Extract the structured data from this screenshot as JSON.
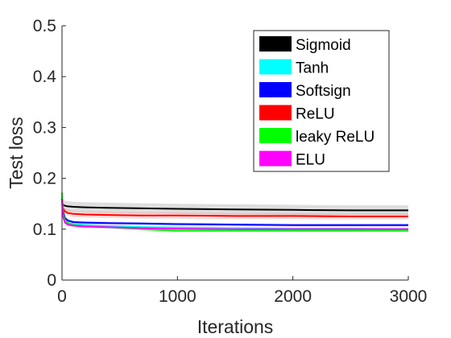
{
  "chart_data": {
    "type": "line",
    "title": "",
    "xlabel": "Iterations",
    "ylabel": "Test loss",
    "xlim": [
      0,
      3000
    ],
    "ylim": [
      0,
      0.5
    ],
    "xticks": [
      "0",
      "1000",
      "2000",
      "3000"
    ],
    "yticks": [
      "0",
      "0.1",
      "0.2",
      "0.3",
      "0.4",
      "0.5"
    ],
    "grid": false,
    "legend_position": "top-right",
    "x": [
      0,
      10,
      25,
      50,
      100,
      200,
      400,
      700,
      1000,
      1500,
      2000,
      2500,
      3000
    ],
    "series": [
      {
        "name": "Sigmoid",
        "color": "#000000",
        "band_color": "#a0a0a0",
        "values": [
          0.15,
          0.148,
          0.146,
          0.145,
          0.144,
          0.143,
          0.142,
          0.141,
          0.14,
          0.139,
          0.138,
          0.137,
          0.137
        ]
      },
      {
        "name": "Tanh",
        "color": "#00ffff",
        "band_color": "#80ffff",
        "values": [
          0.165,
          0.13,
          0.117,
          0.112,
          0.11,
          0.108,
          0.106,
          0.104,
          0.103,
          0.102,
          0.101,
          0.101,
          0.1
        ]
      },
      {
        "name": "Softsign",
        "color": "#0000ff",
        "band_color": "#8080ff",
        "values": [
          0.16,
          0.135,
          0.122,
          0.117,
          0.114,
          0.113,
          0.112,
          0.111,
          0.11,
          0.109,
          0.108,
          0.108,
          0.108
        ]
      },
      {
        "name": "ReLU",
        "color": "#ff0000",
        "band_color": "#ff8080",
        "values": [
          0.15,
          0.14,
          0.135,
          0.132,
          0.13,
          0.129,
          0.128,
          0.127,
          0.127,
          0.126,
          0.126,
          0.125,
          0.125
        ]
      },
      {
        "name": "leaky ReLU",
        "color": "#00ff00",
        "band_color": "#80ff80",
        "values": [
          0.172,
          0.13,
          0.117,
          0.112,
          0.108,
          0.106,
          0.104,
          0.1,
          0.097,
          0.097,
          0.097,
          0.097,
          0.097
        ]
      },
      {
        "name": "ELU",
        "color": "#ff00ff",
        "band_color": "#ff80ff",
        "values": [
          0.158,
          0.125,
          0.113,
          0.109,
          0.107,
          0.105,
          0.104,
          0.102,
          0.101,
          0.1,
          0.1,
          0.1,
          0.1
        ]
      }
    ]
  }
}
